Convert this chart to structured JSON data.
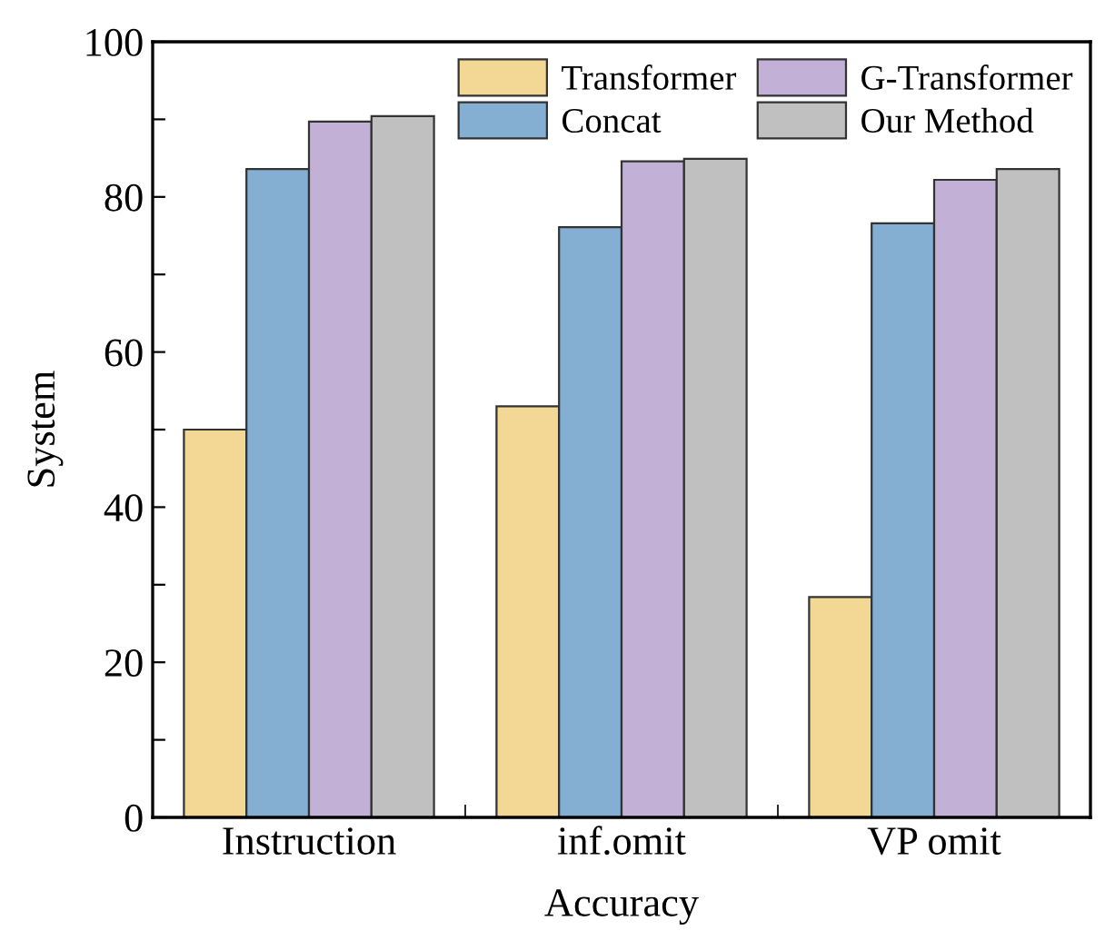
{
  "chart_data": {
    "type": "bar",
    "xlabel": "Accuracy",
    "ylabel": "System",
    "categories": [
      "Instruction",
      "inf.omit",
      "VP omit"
    ],
    "series": [
      {
        "name": "Transformer",
        "color": "#f2d795",
        "values": [
          50.0,
          53.0,
          28.4
        ]
      },
      {
        "name": "Concat",
        "color": "#84afd3",
        "values": [
          83.6,
          76.1,
          76.6
        ]
      },
      {
        "name": "G-Transformer",
        "color": "#c2b0d6",
        "values": [
          89.7,
          84.6,
          82.2
        ]
      },
      {
        "name": "Our Method",
        "color": "#c0c0c0",
        "values": [
          90.4,
          84.9,
          83.6
        ]
      }
    ],
    "ylim": [
      0,
      100
    ],
    "yticks": [
      0,
      {
        "value": 10,
        "label": null
      },
      20,
      {
        "value": 30,
        "label": null
      },
      40,
      {
        "value": 50,
        "label": null
      },
      60,
      {
        "value": 70,
        "label": null
      },
      80,
      {
        "value": 90,
        "label": null
      },
      100
    ],
    "grid": false,
    "legend": "top right"
  }
}
